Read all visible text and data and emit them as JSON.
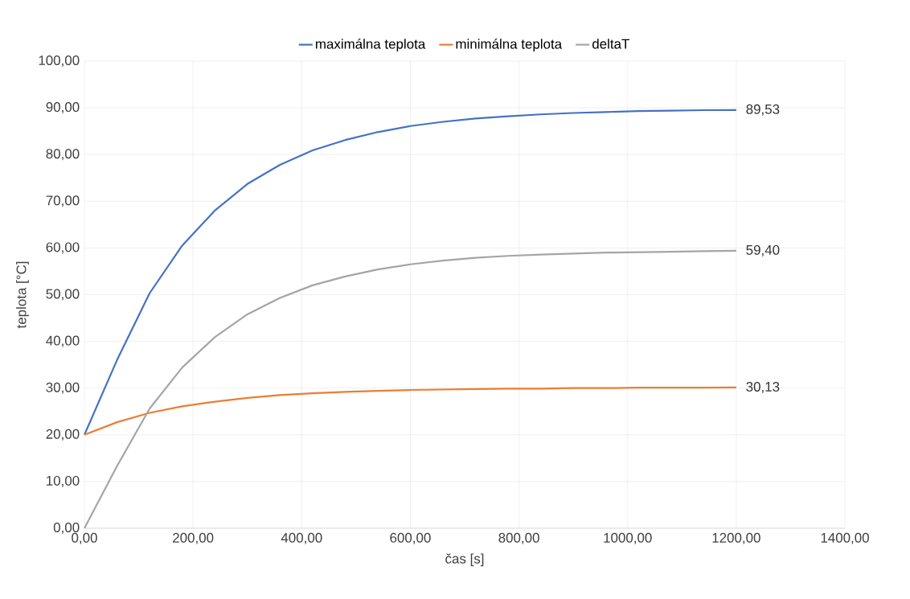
{
  "chart_data": {
    "type": "line",
    "xlabel": "čas [s]",
    "ylabel": "teplota [°C]",
    "x": [
      0,
      60,
      120,
      180,
      240,
      300,
      360,
      420,
      480,
      540,
      600,
      660,
      720,
      780,
      840,
      900,
      960,
      1020,
      1080,
      1140,
      1200
    ],
    "series": [
      {
        "name": "maximálna teplota",
        "color": "#4472c4",
        "values": [
          20,
          36,
          50.3,
          60.5,
          68,
          73.7,
          77.8,
          80.9,
          83.1,
          84.8,
          86.1,
          87,
          87.7,
          88.2,
          88.6,
          88.9,
          89.1,
          89.3,
          89.4,
          89.5,
          89.53
        ],
        "value_labels": [
          null,
          null,
          null,
          null,
          null,
          null,
          null,
          null,
          null,
          null,
          null,
          null,
          null,
          null,
          null,
          null,
          null,
          null,
          null,
          null,
          "89,53"
        ]
      },
      {
        "name": "minimálna teplota",
        "color": "#ed7d31",
        "values": [
          20,
          22.7,
          24.7,
          26.1,
          27.1,
          27.9,
          28.5,
          28.9,
          29.2,
          29.4,
          29.6,
          29.7,
          29.8,
          29.9,
          29.9,
          30,
          30,
          30.1,
          30.1,
          30.1,
          30.13
        ],
        "value_labels": [
          null,
          null,
          null,
          null,
          null,
          null,
          null,
          null,
          null,
          null,
          null,
          null,
          null,
          null,
          null,
          null,
          null,
          null,
          null,
          null,
          "30,13"
        ]
      },
      {
        "name": "deltaT",
        "color": "#a5a5a5",
        "values": [
          0,
          13.3,
          25.6,
          34.4,
          40.9,
          45.8,
          49.3,
          52,
          53.9,
          55.4,
          56.5,
          57.3,
          57.9,
          58.3,
          58.6,
          58.8,
          59,
          59.1,
          59.2,
          59.3,
          59.4
        ],
        "value_labels": [
          null,
          null,
          null,
          null,
          null,
          null,
          null,
          null,
          null,
          null,
          null,
          null,
          null,
          null,
          null,
          null,
          null,
          null,
          null,
          null,
          "59,40"
        ]
      }
    ],
    "xlim": [
      0,
      1400
    ],
    "xticks": [
      {
        "value": 0,
        "label": "0,00"
      },
      {
        "value": 200,
        "label": "200,00"
      },
      {
        "value": 400,
        "label": "400,00"
      },
      {
        "value": 600,
        "label": "600,00"
      },
      {
        "value": 800,
        "label": "800,00"
      },
      {
        "value": 1000,
        "label": "1000,00"
      },
      {
        "value": 1200,
        "label": "1200,00"
      },
      {
        "value": 1400,
        "label": "1400,00"
      }
    ],
    "ylim": [
      0,
      100
    ],
    "yticks": [
      {
        "value": 0,
        "label": "0,00"
      },
      {
        "value": 10,
        "label": "10,00"
      },
      {
        "value": 20,
        "label": "20,00"
      },
      {
        "value": 30,
        "label": "30,00"
      },
      {
        "value": 40,
        "label": "40,00"
      },
      {
        "value": 50,
        "label": "50,00"
      },
      {
        "value": 60,
        "label": "60,00"
      },
      {
        "value": 70,
        "label": "70,00"
      },
      {
        "value": 80,
        "label": "80,00"
      },
      {
        "value": 90,
        "label": "90,00"
      },
      {
        "value": 100,
        "label": "100,00"
      }
    ],
    "grid": true,
    "legend": "top",
    "marker": "none",
    "line_style": "solid"
  }
}
